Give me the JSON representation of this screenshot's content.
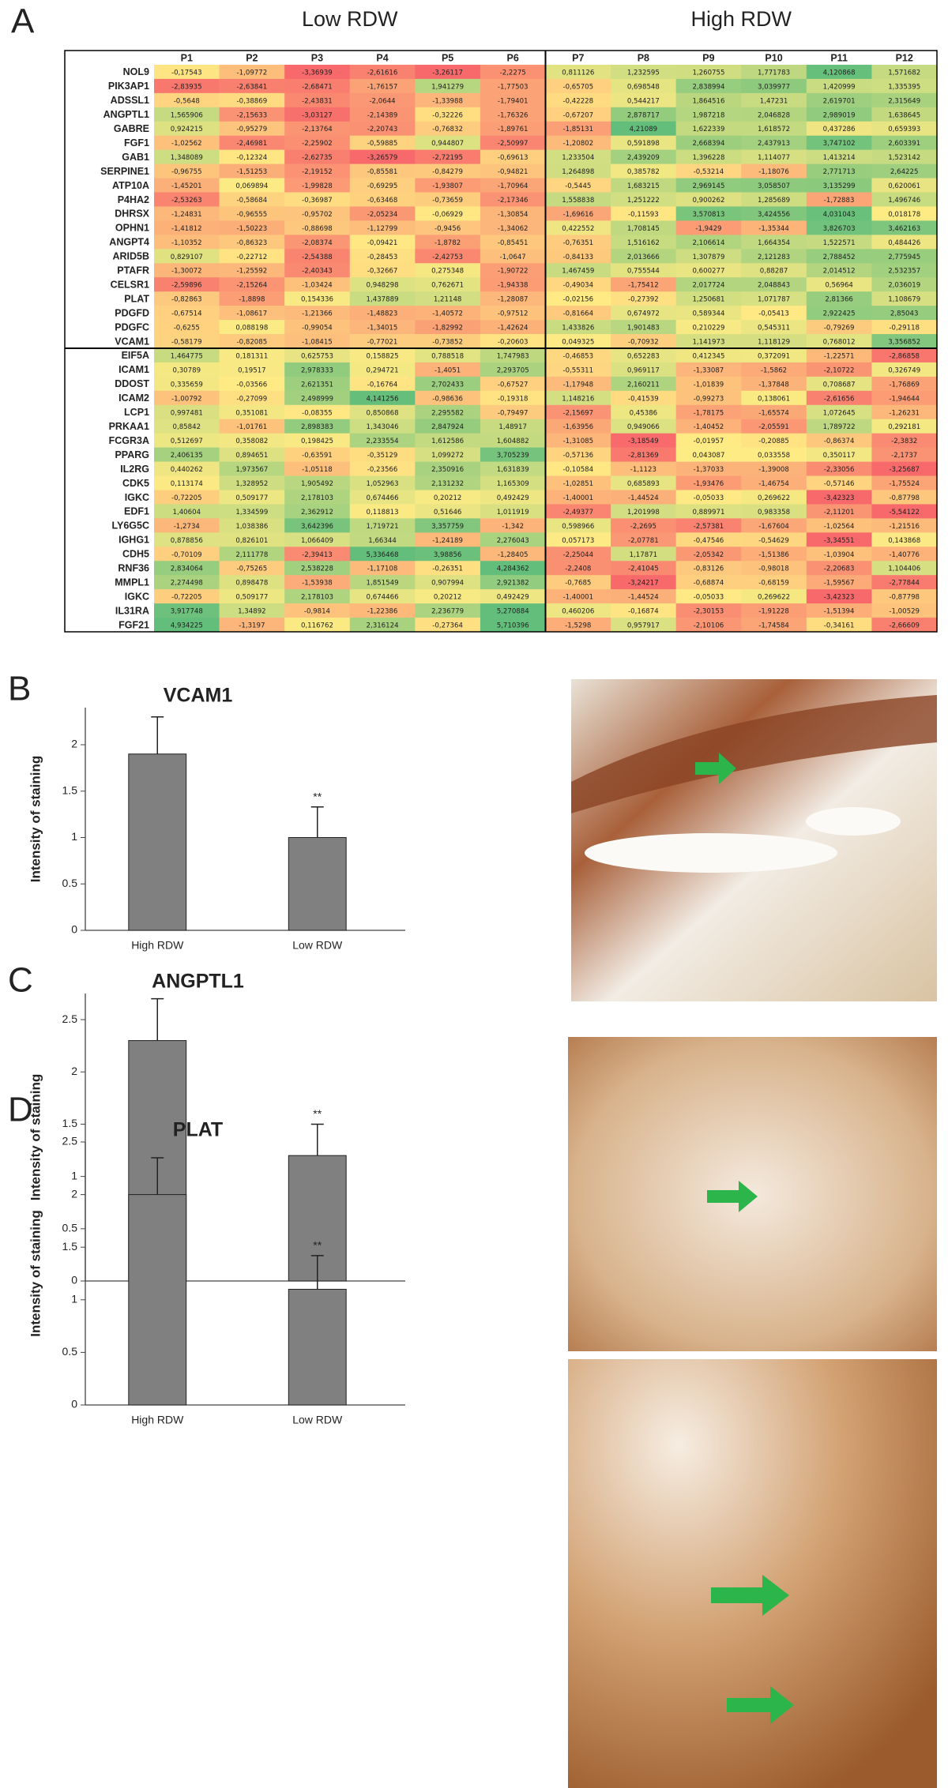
{
  "panel_labels": [
    "A",
    "B",
    "C",
    "D"
  ],
  "table": {
    "group_labels": [
      "Low RDW",
      "High RDW"
    ],
    "columns": [
      "P1",
      "P2",
      "P3",
      "P4",
      "P5",
      "P6",
      "P7",
      "P8",
      "P9",
      "P10",
      "P11",
      "P12"
    ],
    "rows": [
      {
        "gene": "NOL9",
        "values": [
          "-0,17543",
          "-1,09772",
          "-3,36939",
          "-2,61616",
          "-3,26117",
          "-2,2275",
          "0,811126",
          "1,232595",
          "1,260755",
          "1,771783",
          "4,120868",
          "1,571682"
        ]
      },
      {
        "gene": "PIK3AP1",
        "values": [
          "-2,83935",
          "-2,63841",
          "-2,68471",
          "-1,76157",
          "1,941279",
          "-1,77503",
          "-0,65705",
          "0,698548",
          "2,838994",
          "3,039977",
          "1,420999",
          "1,335395"
        ]
      },
      {
        "gene": "ADSSL1",
        "values": [
          "-0,5648",
          "-0,38869",
          "-2,43831",
          "-2,0644",
          "-1,33988",
          "-1,79401",
          "-0,42228",
          "0,544217",
          "1,864516",
          "1,47231",
          "2,619701",
          "2,315649"
        ]
      },
      {
        "gene": "ANGPTL1",
        "values": [
          "1,565906",
          "-2,15633",
          "-3,03127",
          "-2,14389",
          "-0,32226",
          "-1,76326",
          "-0,67207",
          "2,878717",
          "1,987218",
          "2,046828",
          "2,989019",
          "1,638645"
        ]
      },
      {
        "gene": "GABRE",
        "values": [
          "0,924215",
          "-0,95279",
          "-2,13764",
          "-2,20743",
          "-0,76832",
          "-1,89761",
          "-1,85131",
          "4,21089",
          "1,622339",
          "1,618572",
          "0,437286",
          "0,659393"
        ]
      },
      {
        "gene": "FGF1",
        "values": [
          "-1,02562",
          "-2,46981",
          "-2,25902",
          "-0,59885",
          "0,944807",
          "-2,50997",
          "-1,20802",
          "0,591898",
          "2,668394",
          "2,437913",
          "3,747102",
          "2,603391"
        ]
      },
      {
        "gene": "GAB1",
        "values": [
          "1,348089",
          "-0,12324",
          "-2,62735",
          "-3,26579",
          "-2,72195",
          "-0,69613",
          "1,233504",
          "2,439209",
          "1,396228",
          "1,114077",
          "1,413214",
          "1,523142"
        ]
      },
      {
        "gene": "SERPINE1",
        "values": [
          "-0,96755",
          "-1,51253",
          "-2,19152",
          "-0,85581",
          "-0,84279",
          "-0,94821",
          "1,264898",
          "0,385782",
          "-0,53214",
          "-1,18076",
          "2,771713",
          "2,64225"
        ]
      },
      {
        "gene": "ATP10A",
        "values": [
          "-1,45201",
          "0,069894",
          "-1,99828",
          "-0,69295",
          "-1,93807",
          "-1,70964",
          "-0,5445",
          "1,683215",
          "2,969145",
          "3,058507",
          "3,135299",
          "0,620061"
        ]
      },
      {
        "gene": "P4HA2",
        "values": [
          "-2,53263",
          "-0,58684",
          "-0,36987",
          "-0,63468",
          "-0,73659",
          "-2,17346",
          "1,558838",
          "1,251222",
          "0,900262",
          "1,285689",
          "-1,72883",
          "1,496746"
        ]
      },
      {
        "gene": "DHRSX",
        "values": [
          "-1,24831",
          "-0,96555",
          "-0,95702",
          "-2,05234",
          "-0,06929",
          "-1,30854",
          "-1,69616",
          "-0,11593",
          "3,570813",
          "3,424556",
          "4,031043",
          "0,018178"
        ]
      },
      {
        "gene": "OPHN1",
        "values": [
          "-1,41812",
          "-1,50223",
          "-0,88698",
          "-1,12799",
          "-0,9456",
          "-1,34062",
          "0,422552",
          "1,708145",
          "-1,9429",
          "-1,35344",
          "3,826703",
          "3,462163"
        ]
      },
      {
        "gene": "ANGPT4",
        "values": [
          "-1,10352",
          "-0,86323",
          "-2,08374",
          "-0,09421",
          "-1,8782",
          "-0,85451",
          "-0,76351",
          "1,516162",
          "2,106614",
          "1,664354",
          "1,522571",
          "0,484426"
        ]
      },
      {
        "gene": "ARID5B",
        "values": [
          "0,829107",
          "-0,22712",
          "-2,54388",
          "-0,28453",
          "-2,42753",
          "-1,0647",
          "-0,84133",
          "2,013666",
          "1,307879",
          "2,121283",
          "2,788452",
          "2,775945"
        ]
      },
      {
        "gene": "PTAFR",
        "values": [
          "-1,30072",
          "-1,25592",
          "-2,40343",
          "-0,32667",
          "0,275348",
          "-1,90722",
          "1,467459",
          "0,755544",
          "0,600277",
          "0,88287",
          "2,014512",
          "2,532357"
        ]
      },
      {
        "gene": "CELSR1",
        "values": [
          "-2,59896",
          "-2,15264",
          "-1,03424",
          "0,948298",
          "0,762671",
          "-1,94338",
          "-0,49034",
          "-1,75412",
          "2,017724",
          "2,048843",
          "0,56964",
          "2,036019"
        ]
      },
      {
        "gene": "PLAT",
        "values": [
          "-0,82863",
          "-1,8898",
          "0,154336",
          "1,437889",
          "1,21148",
          "-1,28087",
          "-0,02156",
          "-0,27392",
          "1,250681",
          "1,071787",
          "2,81366",
          "1,108679"
        ]
      },
      {
        "gene": "PDGFD",
        "values": [
          "-0,67514",
          "-1,08617",
          "-1,21366",
          "-1,48823",
          "-1,40572",
          "-0,97512",
          "-0,81664",
          "0,674972",
          "0,589344",
          "-0,05413",
          "2,922425",
          "2,85043"
        ]
      },
      {
        "gene": "PDGFC",
        "values": [
          "-0,6255",
          "0,088198",
          "-0,99054",
          "-1,34015",
          "-1,82992",
          "-1,42624",
          "1,433826",
          "1,901483",
          "0,210229",
          "0,545311",
          "-0,79269",
          "-0,29118"
        ]
      },
      {
        "gene": "VCAM1",
        "values": [
          "-0,58179",
          "-0,82085",
          "-1,08415",
          "-0,77021",
          "-0,73852",
          "-0,20603",
          "0,049325",
          "-0,70932",
          "1,141973",
          "1,118129",
          "0,768012",
          "3,356852"
        ]
      },
      {
        "gene": "EIF5A",
        "values": [
          "1,464775",
          "0,181311",
          "0,625753",
          "0,158825",
          "0,788518",
          "1,747983",
          "-0,46853",
          "0,652283",
          "0,412345",
          "0,372091",
          "-1,22571",
          "-2,86858"
        ]
      },
      {
        "gene": "ICAM1",
        "values": [
          "0,30789",
          "0,19517",
          "2,978333",
          "0,294721",
          "-1,4051",
          "2,293705",
          "-0,55311",
          "0,969117",
          "-1,33087",
          "-1,5862",
          "-2,10722",
          "0,326749"
        ]
      },
      {
        "gene": "DDOST",
        "values": [
          "0,335659",
          "-0,03566",
          "2,621351",
          "-0,16764",
          "2,702433",
          "-0,67527",
          "-1,17948",
          "2,160211",
          "-1,01839",
          "-1,37848",
          "0,708687",
          "-1,76869"
        ]
      },
      {
        "gene": "ICAM2",
        "values": [
          "-1,00792",
          "-0,27099",
          "2,498999",
          "4,141256",
          "-0,98636",
          "-0,19318",
          "1,148216",
          "-0,41539",
          "-0,99273",
          "0,138061",
          "-2,61656",
          "-1,94644"
        ]
      },
      {
        "gene": "LCP1",
        "values": [
          "0,997481",
          "0,351081",
          "-0,08355",
          "0,850868",
          "2,295582",
          "-0,79497",
          "-2,15697",
          "0,45386",
          "-1,78175",
          "-1,65574",
          "1,072645",
          "-1,26231"
        ]
      },
      {
        "gene": "PRKAA1",
        "values": [
          "0,85842",
          "-1,01761",
          "2,898383",
          "1,343046",
          "2,847924",
          "1,48917",
          "-1,63956",
          "0,949066",
          "-1,40452",
          "-2,05591",
          "1,789722",
          "0,292181"
        ]
      },
      {
        "gene": "FCGR3A",
        "values": [
          "0,512697",
          "0,358082",
          "0,198425",
          "2,233554",
          "1,612586",
          "1,604882",
          "-1,31085",
          "-3,18549",
          "-0,01957",
          "-0,20885",
          "-0,86374",
          "-2,3832"
        ]
      },
      {
        "gene": "PPARG",
        "values": [
          "2,406135",
          "0,894651",
          "-0,63591",
          "-0,35129",
          "1,099272",
          "3,705239",
          "-0,57136",
          "-2,81369",
          "0,043087",
          "0,033558",
          "0,350117",
          "-2,1737"
        ]
      },
      {
        "gene": "IL2RG",
        "values": [
          "0,440262",
          "1,973567",
          "-1,05118",
          "-0,23566",
          "2,350916",
          "1,631839",
          "-0,10584",
          "-1,1123",
          "-1,37033",
          "-1,39008",
          "-2,33056",
          "-3,25687"
        ]
      },
      {
        "gene": "CDK5",
        "values": [
          "0,113174",
          "1,328952",
          "1,905492",
          "1,052963",
          "2,131232",
          "1,165309",
          "-1,02851",
          "0,685893",
          "-1,93476",
          "-1,46754",
          "-0,57146",
          "-1,75524"
        ]
      },
      {
        "gene": "IGKC",
        "values": [
          "-0,72205",
          "0,509177",
          "2,178103",
          "0,674466",
          "0,20212",
          "0,492429",
          "-1,40001",
          "-1,44524",
          "-0,05033",
          "0,269622",
          "-3,42323",
          "-0,87798"
        ]
      },
      {
        "gene": "EDF1",
        "values": [
          "1,40604",
          "1,334599",
          "2,362912",
          "0,118813",
          "0,51646",
          "1,011919",
          "-2,49377",
          "1,201998",
          "0,889971",
          "0,983358",
          "-2,11201",
          "-5,54122"
        ]
      },
      {
        "gene": "LY6G5C",
        "values": [
          "-1,2734",
          "1,038386",
          "3,642396",
          "1,719721",
          "3,357759",
          "-1,342",
          "0,598966",
          "-2,2695",
          "-2,57381",
          "-1,67604",
          "-1,02564",
          "-1,21516"
        ]
      },
      {
        "gene": "IGHG1",
        "values": [
          "0,878856",
          "0,826101",
          "1,066409",
          "1,66344",
          "-1,24189",
          "2,276043",
          "0,057173",
          "-2,07781",
          "-0,47546",
          "-0,54629",
          "-3,34551",
          "0,143868"
        ]
      },
      {
        "gene": "CDH5",
        "values": [
          "-0,70109",
          "2,111778",
          "-2,39413",
          "5,336468",
          "3,98856",
          "-1,28405",
          "-2,25044",
          "1,17871",
          "-2,05342",
          "-1,51386",
          "-1,03904",
          "-1,40776"
        ]
      },
      {
        "gene": "RNF36",
        "values": [
          "2,834064",
          "-0,75265",
          "2,538228",
          "-1,17108",
          "-0,26351",
          "4,284362",
          "-2,2408",
          "-2,41045",
          "-0,83126",
          "-0,98018",
          "-2,20683",
          "1,104406"
        ]
      },
      {
        "gene": "MMPL1",
        "values": [
          "2,274498",
          "0,898478",
          "-1,53938",
          "1,851549",
          "0,907994",
          "2,921382",
          "-0,7685",
          "-3,24217",
          "-0,68874",
          "-0,68159",
          "-1,59567",
          "-2,77844"
        ]
      },
      {
        "gene": "IGKC",
        "values": [
          "-0,72205",
          "0,509177",
          "2,178103",
          "0,674466",
          "0,20212",
          "0,492429",
          "-1,40001",
          "-1,44524",
          "-0,05033",
          "0,269622",
          "-3,42323",
          "-0,87798"
        ]
      },
      {
        "gene": "IL31RA",
        "values": [
          "3,917748",
          "1,34892",
          "-0,9814",
          "-1,22386",
          "2,236779",
          "5,270884",
          "0,460206",
          "-0,16874",
          "-2,30153",
          "-1,91228",
          "-1,51394",
          "-1,00529"
        ]
      },
      {
        "gene": "FGF21",
        "values": [
          "4,934225",
          "-1,3197",
          "0,116762",
          "2,316124",
          "-0,27364",
          "5,710396",
          "-1,5298",
          "0,957917",
          "-2,10106",
          "-1,74584",
          "-0,34161",
          "-2,66609"
        ]
      }
    ]
  },
  "chart_data": [
    {
      "type": "bar",
      "title": "VCAM1",
      "ylabel": "Intensity of staining",
      "categories": [
        "High RDW",
        "Low RDW"
      ],
      "values": [
        1.9,
        1.0
      ],
      "errors": [
        0.4,
        0.33
      ],
      "color": "#808080",
      "ylim": [
        0,
        2.4
      ],
      "yticks": [
        0,
        0.5,
        1,
        1.5,
        2
      ],
      "annotation": "**"
    },
    {
      "type": "bar",
      "title": "ANGPTL1",
      "ylabel": "Intensity of staining",
      "categories": [
        "High RDW",
        "Low RDW"
      ],
      "values": [
        2.3,
        1.2
      ],
      "errors": [
        0.4,
        0.3
      ],
      "color": "#808080",
      "ylim": [
        0,
        2.75
      ],
      "yticks": [
        0,
        0.5,
        1,
        1.5,
        2,
        2.5
      ],
      "annotation": "**"
    },
    {
      "type": "bar",
      "title": "PLAT",
      "ylabel": "Intensity of staining",
      "categories": [
        "High RDW",
        "Low RDW"
      ],
      "values": [
        2.0,
        1.1
      ],
      "errors": [
        0.35,
        0.32
      ],
      "color": "#808080",
      "ylim": [
        0,
        2.5
      ],
      "yticks": [
        0,
        0.5,
        1,
        1.5,
        2,
        2.5
      ],
      "annotation": "**"
    }
  ]
}
